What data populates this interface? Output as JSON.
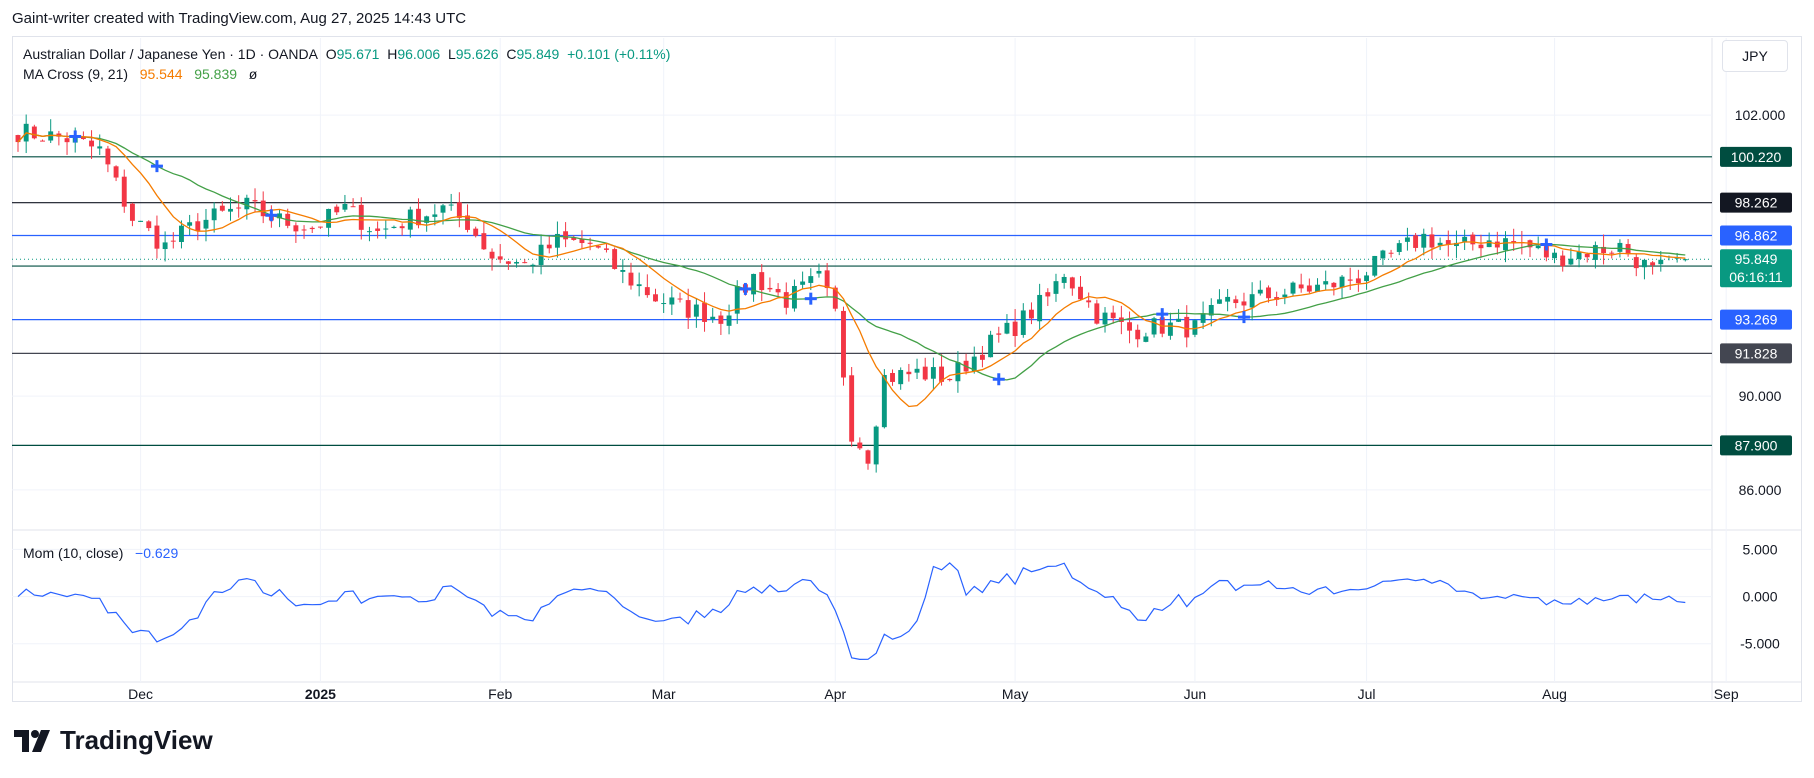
{
  "header": {
    "attribution": "Gaint-writer created with TradingView.com, Aug 27, 2025 14:43 UTC"
  },
  "legend": {
    "symbol": "Australian Dollar / Japanese Yen · 1D · OANDA",
    "o_label": "O",
    "o_value": "95.671",
    "h_label": "H",
    "h_value": "96.006",
    "l_label": "L",
    "l_value": "95.626",
    "c_label": "C",
    "c_value": "95.849",
    "change": "+0.101 (+0.11%)",
    "ma_label": "MA Cross (9, 21)",
    "ma_fast": "95.544",
    "ma_slow": "95.839",
    "ma_symbol": "ø",
    "mom_label": "Mom (10, close)",
    "mom_value": "−0.629"
  },
  "currency": "JPY",
  "brand": "TradingView",
  "colors": {
    "up": "#089981",
    "down": "#f23645",
    "ma_fast": "#f57c00",
    "ma_slow": "#43a047",
    "momentum": "#2962ff",
    "cross": "#2962ff",
    "dark_green": "#004d40",
    "dark": "#131722",
    "blue": "#2962ff",
    "grey": "#434651"
  },
  "chart_data": {
    "type": "candlestick",
    "timeframe": "1D",
    "ylim": [
      84.5,
      103.5
    ],
    "y_ticks": [
      "102.000",
      "90.000",
      "86.000"
    ],
    "x_labels": [
      {
        "label": "Dec",
        "index": 15,
        "bold": false
      },
      {
        "label": "2025",
        "index": 37,
        "bold": true
      },
      {
        "label": "Feb",
        "index": 59,
        "bold": false
      },
      {
        "label": "Mar",
        "index": 79,
        "bold": false
      },
      {
        "label": "Apr",
        "index": 100,
        "bold": false
      },
      {
        "label": "May",
        "index": 122,
        "bold": false
      },
      {
        "label": "Jun",
        "index": 144,
        "bold": false
      },
      {
        "label": "Jul",
        "index": 165,
        "bold": false
      },
      {
        "label": "Aug",
        "index": 188,
        "bold": false
      },
      {
        "label": "Sep",
        "index": 209,
        "bold": false
      }
    ],
    "horizontal_levels": [
      {
        "value": 100.22,
        "label": "100.220",
        "style": "dark_green"
      },
      {
        "value": 98.262,
        "label": "98.262",
        "style": "dark"
      },
      {
        "value": 96.862,
        "label": "96.862",
        "style": "blue"
      },
      {
        "value": 95.556,
        "label": "95.556",
        "style": "dark_green"
      },
      {
        "value": 93.269,
        "label": "93.269",
        "style": "blue"
      },
      {
        "value": 91.828,
        "label": "91.828",
        "style": "grey"
      },
      {
        "value": 87.9,
        "label": "87.900",
        "style": "dark_green"
      }
    ],
    "last_price": {
      "value": 95.849,
      "label": "95.849",
      "countdown": "06:16:11"
    },
    "close_path": [
      [
        0,
        101.3
      ],
      [
        6,
        101.0
      ],
      [
        10,
        100.5
      ],
      [
        14,
        97.6
      ],
      [
        18,
        96.4
      ],
      [
        22,
        97.4
      ],
      [
        28,
        98.1
      ],
      [
        32,
        97.5
      ],
      [
        36,
        97.2
      ],
      [
        40,
        98.0
      ],
      [
        44,
        97.0
      ],
      [
        48,
        97.6
      ],
      [
        52,
        98.0
      ],
      [
        55,
        97.4
      ],
      [
        58,
        96.0
      ],
      [
        62,
        95.6
      ],
      [
        66,
        96.6
      ],
      [
        70,
        96.5
      ],
      [
        74,
        95.2
      ],
      [
        78,
        94.2
      ],
      [
        82,
        93.7
      ],
      [
        86,
        93.4
      ],
      [
        90,
        95.1
      ],
      [
        94,
        94.1
      ],
      [
        98,
        95.0
      ],
      [
        100,
        93.5
      ],
      [
        102,
        88.5
      ],
      [
        104,
        87.5
      ],
      [
        106,
        90.8
      ],
      [
        110,
        91.0
      ],
      [
        114,
        90.8
      ],
      [
        118,
        92.0
      ],
      [
        122,
        93.0
      ],
      [
        126,
        94.2
      ],
      [
        128,
        95.3
      ],
      [
        132,
        93.5
      ],
      [
        136,
        92.8
      ],
      [
        140,
        93.0
      ],
      [
        144,
        92.9
      ],
      [
        148,
        94.0
      ],
      [
        152,
        94.2
      ],
      [
        156,
        94.5
      ],
      [
        160,
        94.7
      ],
      [
        164,
        95.1
      ],
      [
        168,
        96.0
      ],
      [
        172,
        96.8
      ],
      [
        176,
        96.3
      ],
      [
        180,
        96.7
      ],
      [
        184,
        96.5
      ],
      [
        188,
        95.9
      ],
      [
        192,
        96.2
      ],
      [
        196,
        96.4
      ],
      [
        200,
        95.3
      ],
      [
        204,
        95.9
      ]
    ],
    "ma_cross_markers": [
      7,
      17,
      31,
      89,
      97,
      120,
      140,
      150,
      187
    ],
    "momentum": {
      "label": "Mom (10, close)",
      "ylim": [
        -8,
        6
      ],
      "y_ticks": [
        "5.000",
        "0.000",
        "-5.000"
      ]
    }
  }
}
